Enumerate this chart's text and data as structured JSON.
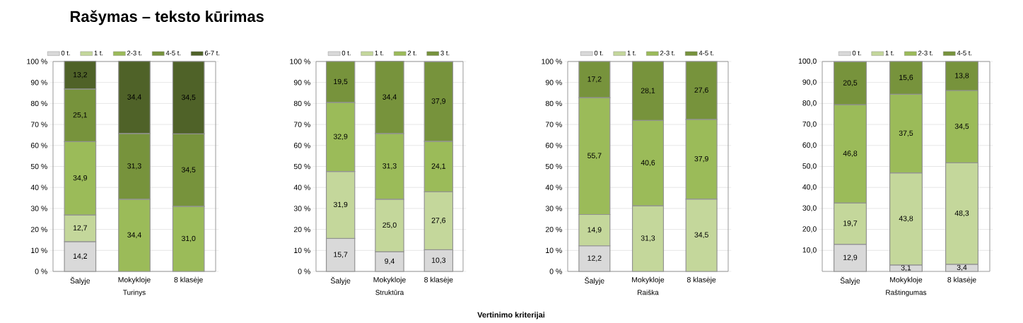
{
  "chart_data": [
    {
      "type": "bar",
      "stacked": true,
      "title": "Rašymas – teksto kūrimas",
      "xlabel": "Turinys",
      "annotations": [
        "Vertinimo kriterijai"
      ],
      "categories": [
        "Šalyje",
        "Mokykloje",
        "8 klasėje"
      ],
      "ylim": [
        0,
        100
      ],
      "yticks": [
        {
          "value": 0,
          "label": "0 %"
        },
        {
          "value": 10,
          "label": "10 %"
        },
        {
          "value": 20,
          "label": "20 %"
        },
        {
          "value": 30,
          "label": "30 %"
        },
        {
          "value": 40,
          "label": "40 %"
        },
        {
          "value": 50,
          "label": "50 %"
        },
        {
          "value": 60,
          "label": "60 %"
        },
        {
          "value": 70,
          "label": "70 %"
        },
        {
          "value": 80,
          "label": "80 %"
        },
        {
          "value": 90,
          "label": "90 %"
        },
        {
          "value": 100,
          "label": "100 %"
        }
      ],
      "grid": "y",
      "legend": "top",
      "series": [
        {
          "name": "0 t.",
          "color": "#d9d9d9",
          "values": [
            14.2,
            null,
            null
          ],
          "value_labels": [
            "14,2",
            null,
            null
          ]
        },
        {
          "name": "1 t.",
          "color": "#c4d79b",
          "values": [
            12.7,
            null,
            null
          ],
          "value_labels": [
            "12,7",
            null,
            null
          ]
        },
        {
          "name": "2-3 t.",
          "color": "#9bbb59",
          "values": [
            34.9,
            34.4,
            31.0
          ],
          "value_labels": [
            "34,9",
            "34,4",
            "31,0"
          ]
        },
        {
          "name": "4-5 t.",
          "color": "#77933c",
          "values": [
            25.1,
            31.3,
            34.5
          ],
          "value_labels": [
            "25,1",
            "31,3",
            "34,5"
          ]
        },
        {
          "name": "6-7 t.",
          "color": "#4f6228",
          "values": [
            13.2,
            34.4,
            34.5
          ],
          "value_labels": [
            "13,2",
            "34,4",
            "34,5"
          ]
        }
      ]
    },
    {
      "type": "bar",
      "stacked": true,
      "xlabel": "Struktūra",
      "categories": [
        "Šalyje",
        "Mokykloje",
        "8 klasėje"
      ],
      "ylim": [
        0,
        100
      ],
      "yticks": [
        {
          "value": 0,
          "label": "0 %"
        },
        {
          "value": 10,
          "label": "10 %"
        },
        {
          "value": 20,
          "label": "20 %"
        },
        {
          "value": 30,
          "label": "30 %"
        },
        {
          "value": 40,
          "label": "40 %"
        },
        {
          "value": 50,
          "label": "50 %"
        },
        {
          "value": 60,
          "label": "60 %"
        },
        {
          "value": 70,
          "label": "70 %"
        },
        {
          "value": 80,
          "label": "80 %"
        },
        {
          "value": 90,
          "label": "90 %"
        },
        {
          "value": 100,
          "label": "100 %"
        }
      ],
      "grid": "y",
      "legend": "top",
      "series": [
        {
          "name": "0 t.",
          "color": "#d9d9d9",
          "values": [
            15.7,
            9.4,
            10.3
          ],
          "value_labels": [
            "15,7",
            "9,4",
            "10,3"
          ]
        },
        {
          "name": "1 t.",
          "color": "#c4d79b",
          "values": [
            31.9,
            25.0,
            27.6
          ],
          "value_labels": [
            "31,9",
            "25,0",
            "27,6"
          ]
        },
        {
          "name": "2 t.",
          "color": "#9bbb59",
          "values": [
            32.9,
            31.3,
            24.1
          ],
          "value_labels": [
            "32,9",
            "31,3",
            "24,1"
          ]
        },
        {
          "name": "3 t.",
          "color": "#77933c",
          "values": [
            19.5,
            34.4,
            37.9
          ],
          "value_labels": [
            "19,5",
            "34,4",
            "37,9"
          ]
        }
      ]
    },
    {
      "type": "bar",
      "stacked": true,
      "xlabel": "Raiška",
      "categories": [
        "Šalyje",
        "Mokykloje",
        "8 klasėje"
      ],
      "ylim": [
        0,
        100
      ],
      "yticks": [
        {
          "value": 0,
          "label": "0 %"
        },
        {
          "value": 10,
          "label": "10 %"
        },
        {
          "value": 20,
          "label": "20 %"
        },
        {
          "value": 30,
          "label": "30 %"
        },
        {
          "value": 40,
          "label": "40 %"
        },
        {
          "value": 50,
          "label": "50 %"
        },
        {
          "value": 60,
          "label": "60 %"
        },
        {
          "value": 70,
          "label": "70 %"
        },
        {
          "value": 80,
          "label": "80 %"
        },
        {
          "value": 90,
          "label": "90 %"
        },
        {
          "value": 100,
          "label": "100 %"
        }
      ],
      "grid": "y",
      "legend": "top",
      "series": [
        {
          "name": "0 t.",
          "color": "#d9d9d9",
          "values": [
            12.2,
            null,
            null
          ],
          "value_labels": [
            "12,2",
            null,
            null
          ]
        },
        {
          "name": "1 t.",
          "color": "#c4d79b",
          "values": [
            14.9,
            31.3,
            34.5
          ],
          "value_labels": [
            "14,9",
            "31,3",
            "34,5"
          ]
        },
        {
          "name": "2-3 t.",
          "color": "#9bbb59",
          "values": [
            55.7,
            40.6,
            37.9
          ],
          "value_labels": [
            "55,7",
            "40,6",
            "37,9"
          ]
        },
        {
          "name": "4-5 t.",
          "color": "#77933c",
          "values": [
            17.2,
            28.1,
            27.6
          ],
          "value_labels": [
            "17,2",
            "28,1",
            "27,6"
          ]
        }
      ]
    },
    {
      "type": "bar",
      "stacked": true,
      "xlabel": "Raštingumas",
      "categories": [
        "Šalyje",
        "Mokykloje",
        "8 klasėje"
      ],
      "ylim": [
        0,
        100
      ],
      "yticks": [
        {
          "value": 10,
          "label": "10,0"
        },
        {
          "value": 20,
          "label": "20,0"
        },
        {
          "value": 30,
          "label": "30,0"
        },
        {
          "value": 40,
          "label": "40,0"
        },
        {
          "value": 50,
          "label": "50,0"
        },
        {
          "value": 60,
          "label": "60,0"
        },
        {
          "value": 70,
          "label": "70,0"
        },
        {
          "value": 80,
          "label": "80,0"
        },
        {
          "value": 90,
          "label": "90,0"
        },
        {
          "value": 100,
          "label": "100,0"
        }
      ],
      "grid": "y",
      "legend": "top",
      "series": [
        {
          "name": "0 t.",
          "color": "#d9d9d9",
          "values": [
            12.9,
            3.1,
            3.4
          ],
          "value_labels": [
            "12,9",
            "3,1",
            "3,4"
          ]
        },
        {
          "name": "1 t.",
          "color": "#c4d79b",
          "values": [
            19.7,
            43.8,
            48.3
          ],
          "value_labels": [
            "19,7",
            "43,8",
            "48,3"
          ]
        },
        {
          "name": "2-3 t.",
          "color": "#9bbb59",
          "values": [
            46.8,
            37.5,
            34.5
          ],
          "value_labels": [
            "46,8",
            "37,5",
            "34,5"
          ]
        },
        {
          "name": "4-5 t.",
          "color": "#77933c",
          "values": [
            20.5,
            15.6,
            13.8
          ],
          "value_labels": [
            "20,5",
            "15,6",
            "13,8"
          ]
        }
      ]
    }
  ]
}
